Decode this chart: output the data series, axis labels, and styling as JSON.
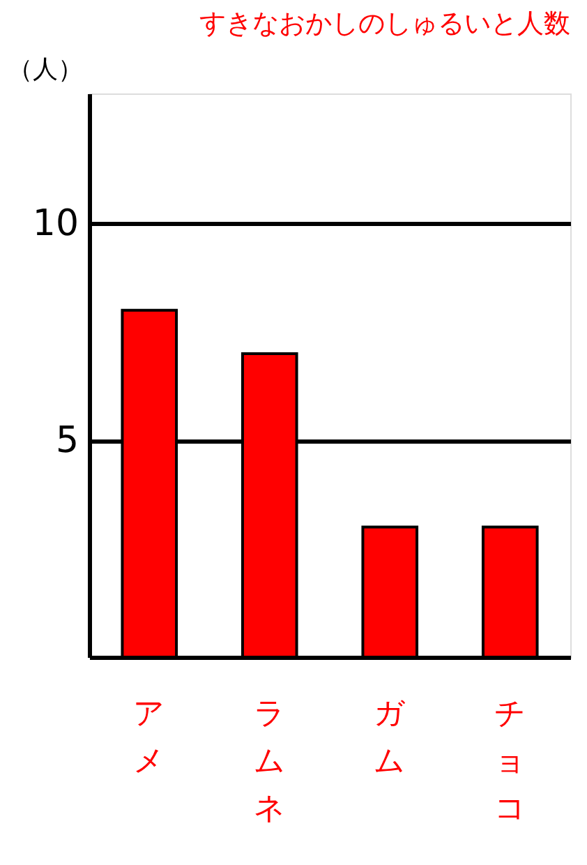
{
  "chart_data": {
    "type": "bar",
    "title": "すきなおかしのしゅるいと人数",
    "ylabel": "（人）",
    "categories": [
      "アメ",
      "ラムネ",
      "ガム",
      "チョコ"
    ],
    "values": [
      8,
      7,
      3,
      3
    ],
    "color": "#ff0000",
    "ylim": [
      0,
      13
    ],
    "yticks": [
      5,
      10
    ],
    "grid": "y"
  }
}
